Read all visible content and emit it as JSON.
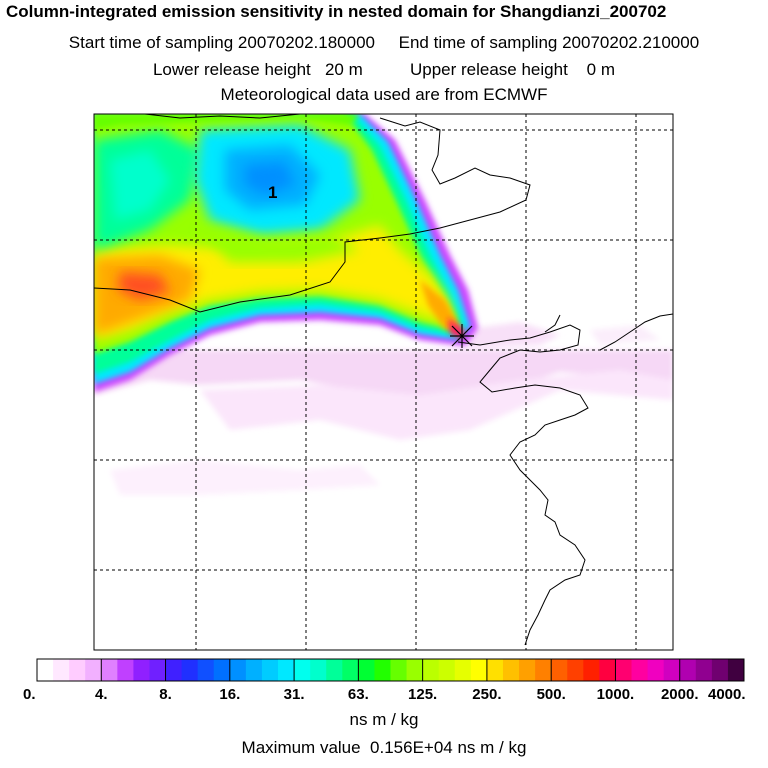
{
  "header": {
    "title": "Column-integrated emission sensitivity in nested domain for Shangdianzi_200702",
    "line2": "Start time of sampling 20070202.180000     End time of sampling 20070202.210000",
    "line3": "Lower release height   20 m          Upper release height    0 m",
    "line4": "Meteorological data used are from ECMWF"
  },
  "map": {
    "contour_label": "1",
    "release_marker": "receptor-site-marker"
  },
  "colorbar": {
    "tick_labels": [
      "0.",
      "4.",
      "8.",
      "16.",
      "31.",
      "63.",
      "125.",
      "250.",
      "500.",
      "1000.",
      "2000.",
      "4000."
    ],
    "colors": [
      "#ffffff",
      "#ffe8ff",
      "#ffccff",
      "#f2b0ff",
      "#e080ff",
      "#c040ff",
      "#9020ff",
      "#7020ff",
      "#4020ff",
      "#2030ff",
      "#1050ff",
      "#0070ff",
      "#0090ff",
      "#00b0ff",
      "#00ccff",
      "#00e8ff",
      "#00ffee",
      "#00ffcc",
      "#00ff99",
      "#00ff66",
      "#00ff33",
      "#22ff00",
      "#66ff00",
      "#99ff00",
      "#bbff00",
      "#ccff00",
      "#e6ff00",
      "#ffff00",
      "#ffe000",
      "#ffc000",
      "#ffa000",
      "#ff8000",
      "#ff6000",
      "#ff4000",
      "#ff2000",
      "#ff0040",
      "#ff0070",
      "#ff00a0",
      "#f000c0",
      "#d000c0",
      "#b000b0",
      "#900090",
      "#700070",
      "#400040"
    ],
    "units": "ns m / kg"
  },
  "footer": {
    "max_value": "Maximum value  0.156E+04 ns m / kg"
  }
}
